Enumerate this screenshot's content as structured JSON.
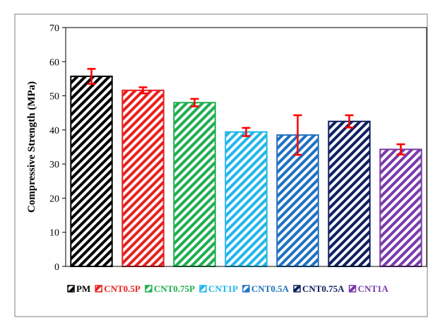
{
  "chart_data": {
    "type": "bar",
    "ylabel": "Compressive Strength (MPa)",
    "xlabel": "",
    "ylim": [
      0,
      70
    ],
    "yticks": [
      0,
      10,
      20,
      30,
      40,
      50,
      60,
      70
    ],
    "grid": false,
    "legend_position": "bottom",
    "categories": [
      "PM",
      "CNT0.5P",
      "CNT0.75P",
      "CNT1P",
      "CNT0.5A",
      "CNT0.75A",
      "CNT1A"
    ],
    "values": [
      55.7,
      51.6,
      48.0,
      39.4,
      38.5,
      42.5,
      34.3
    ],
    "error_low": [
      2.2,
      0.9,
      1.1,
      1.2,
      5.8,
      1.8,
      1.5
    ],
    "error_high": [
      2.2,
      0.9,
      1.1,
      1.2,
      5.8,
      1.8,
      1.5
    ],
    "colors": [
      "#000000",
      "#e8201f",
      "#1fad4f",
      "#1fb6ea",
      "#1f70c1",
      "#0f2060",
      "#7a3aa8"
    ],
    "error_bar_color": "#ff0000",
    "fill_pattern": "diagonal-stripes"
  }
}
